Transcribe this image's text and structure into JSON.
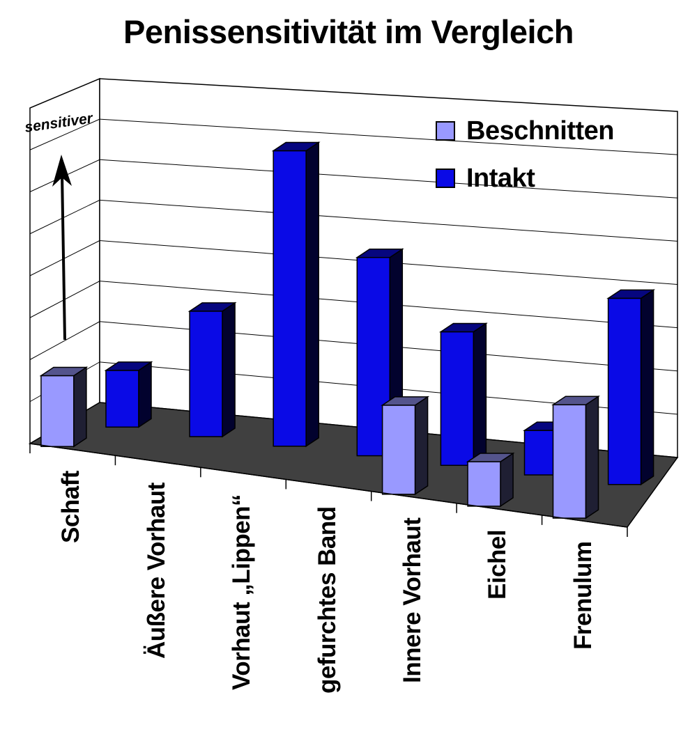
{
  "chart_data": {
    "type": "bar",
    "title": "Penissensitivität im Vergleich",
    "ylabel": "sensitiver",
    "xlabel": "",
    "categories": [
      "Schaft",
      "Äußere Vorhaut",
      "Vorhaut „Lippen“",
      "gefurchtes Band",
      "Innere Vorhaut",
      "Eichel",
      "Frenulum"
    ],
    "series": [
      {
        "name": "Beschnitten",
        "values": [
          1.75,
          null,
          null,
          null,
          2.2,
          1.1,
          2.8
        ],
        "color": "#9999ff"
      },
      {
        "name": "Intakt",
        "values": [
          1.4,
          3.1,
          7.3,
          4.9,
          3.3,
          1.1,
          4.6
        ],
        "color": "#0a0ae6"
      }
    ],
    "ylim": [
      0,
      8
    ],
    "grid": true,
    "legend_position": "top-right",
    "three_d": true,
    "floor_color": "#404040"
  }
}
